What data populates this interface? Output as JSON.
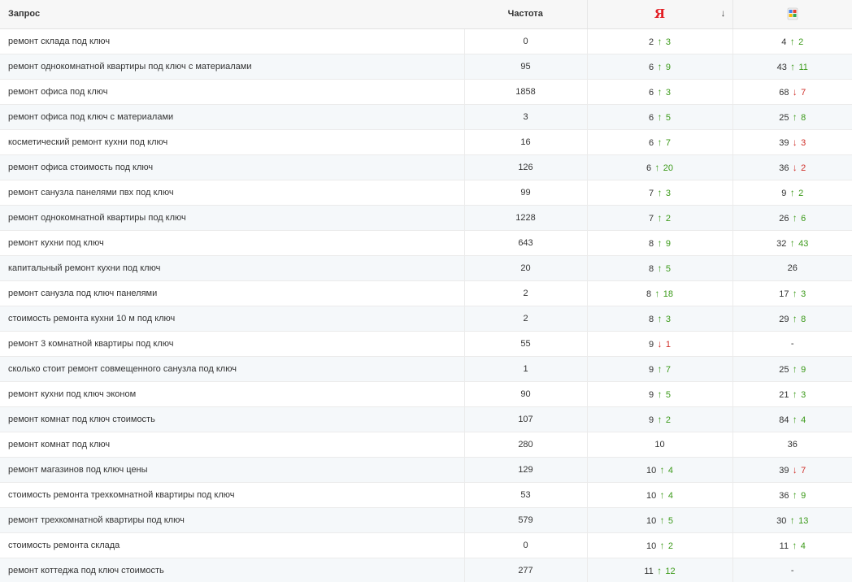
{
  "header": {
    "query": "Запрос",
    "frequency": "Частота",
    "yandex_label": "Я",
    "sort_arrow": "↓",
    "google_icon": "google-search-icon"
  },
  "colors": {
    "up": "#3c9a1a",
    "down": "#d0302a",
    "yandex": "#e31e24"
  },
  "rows": [
    {
      "q": "ремонт склада под ключ",
      "f": "0",
      "y": "2",
      "yd": "up",
      "yc": "3",
      "g": "4",
      "gd": "up",
      "gc": "2"
    },
    {
      "q": "ремонт однокомнатной квартиры под ключ с материалами",
      "f": "95",
      "y": "6",
      "yd": "up",
      "yc": "9",
      "g": "43",
      "gd": "up",
      "gc": "11"
    },
    {
      "q": "ремонт офиса под ключ",
      "f": "1858",
      "y": "6",
      "yd": "up",
      "yc": "3",
      "g": "68",
      "gd": "down",
      "gc": "7"
    },
    {
      "q": "ремонт офиса под ключ с материалами",
      "f": "3",
      "y": "6",
      "yd": "up",
      "yc": "5",
      "g": "25",
      "gd": "up",
      "gc": "8"
    },
    {
      "q": "косметический ремонт кухни под ключ",
      "f": "16",
      "y": "6",
      "yd": "up",
      "yc": "7",
      "g": "39",
      "gd": "down",
      "gc": "3"
    },
    {
      "q": "ремонт офиса стоимость под ключ",
      "f": "126",
      "y": "6",
      "yd": "up",
      "yc": "20",
      "g": "36",
      "gd": "down",
      "gc": "2"
    },
    {
      "q": "ремонт санузла панелями пвх под ключ",
      "f": "99",
      "y": "7",
      "yd": "up",
      "yc": "3",
      "g": "9",
      "gd": "up",
      "gc": "2"
    },
    {
      "q": "ремонт однокомнатной квартиры под ключ",
      "f": "1228",
      "y": "7",
      "yd": "up",
      "yc": "2",
      "g": "26",
      "gd": "up",
      "gc": "6"
    },
    {
      "q": "ремонт кухни под ключ",
      "f": "643",
      "y": "8",
      "yd": "up",
      "yc": "9",
      "g": "32",
      "gd": "up",
      "gc": "43"
    },
    {
      "q": "капитальный ремонт кухни под ключ",
      "f": "20",
      "y": "8",
      "yd": "up",
      "yc": "5",
      "g": "26",
      "gd": "",
      "gc": ""
    },
    {
      "q": "ремонт санузла под ключ панелями",
      "f": "2",
      "y": "8",
      "yd": "up",
      "yc": "18",
      "g": "17",
      "gd": "up",
      "gc": "3"
    },
    {
      "q": "стоимость ремонта кухни 10 м под ключ",
      "f": "2",
      "y": "8",
      "yd": "up",
      "yc": "3",
      "g": "29",
      "gd": "up",
      "gc": "8"
    },
    {
      "q": "ремонт 3 комнатной квартиры под ключ",
      "f": "55",
      "y": "9",
      "yd": "down",
      "yc": "1",
      "g": "-",
      "gd": "",
      "gc": ""
    },
    {
      "q": "сколько стоит ремонт совмещенного санузла под ключ",
      "f": "1",
      "y": "9",
      "yd": "up",
      "yc": "7",
      "g": "25",
      "gd": "up",
      "gc": "9"
    },
    {
      "q": "ремонт кухни под ключ эконом",
      "f": "90",
      "y": "9",
      "yd": "up",
      "yc": "5",
      "g": "21",
      "gd": "up",
      "gc": "3"
    },
    {
      "q": "ремонт комнат под ключ стоимость",
      "f": "107",
      "y": "9",
      "yd": "up",
      "yc": "2",
      "g": "84",
      "gd": "up",
      "gc": "4"
    },
    {
      "q": "ремонт комнат под ключ",
      "f": "280",
      "y": "10",
      "yd": "",
      "yc": "",
      "g": "36",
      "gd": "",
      "gc": ""
    },
    {
      "q": "ремонт магазинов под ключ цены",
      "f": "129",
      "y": "10",
      "yd": "up",
      "yc": "4",
      "g": "39",
      "gd": "down",
      "gc": "7"
    },
    {
      "q": "стоимость ремонта трехкомнатной квартиры под ключ",
      "f": "53",
      "y": "10",
      "yd": "up",
      "yc": "4",
      "g": "36",
      "gd": "up",
      "gc": "9"
    },
    {
      "q": "ремонт трехкомнатной квартиры под ключ",
      "f": "579",
      "y": "10",
      "yd": "up",
      "yc": "5",
      "g": "30",
      "gd": "up",
      "gc": "13"
    },
    {
      "q": "стоимость ремонта склада",
      "f": "0",
      "y": "10",
      "yd": "up",
      "yc": "2",
      "g": "11",
      "gd": "up",
      "gc": "4"
    },
    {
      "q": "ремонт коттеджа под ключ стоимость",
      "f": "277",
      "y": "11",
      "yd": "up",
      "yc": "12",
      "g": "-",
      "gd": "",
      "gc": ""
    }
  ]
}
